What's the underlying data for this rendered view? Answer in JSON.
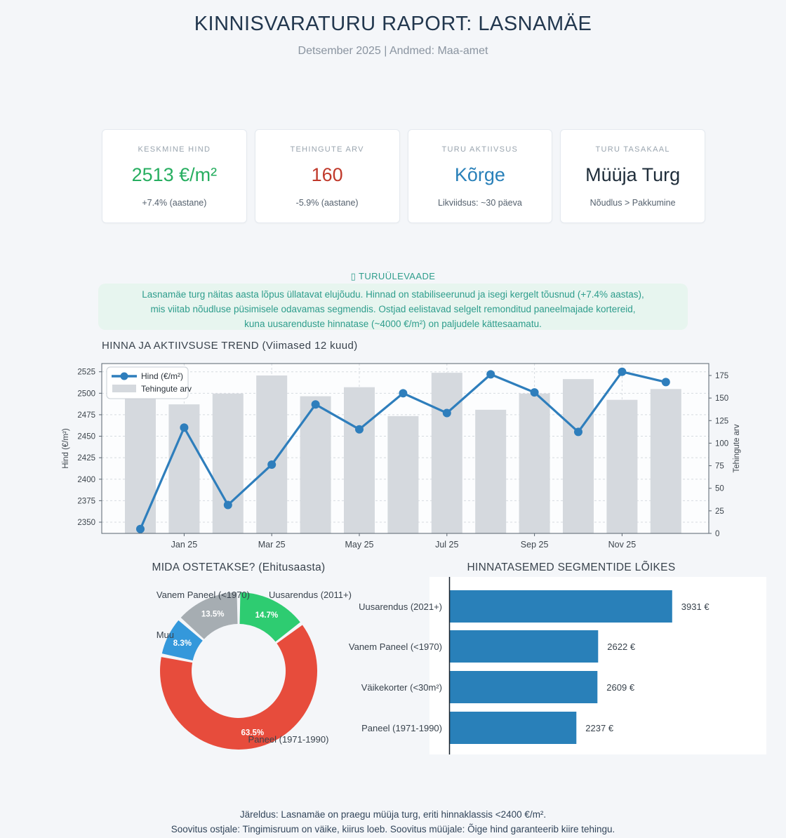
{
  "header": {
    "title": "KINNISVARATURU RAPORT: LASNAMÄE",
    "subtitle": "Detsember 2025 | Andmed: Maa-amet"
  },
  "cards": [
    {
      "label": "KESKMINE HIND",
      "value": "2513 €/m²",
      "sub": "+7.4% (aastane)",
      "color": "#27ae60"
    },
    {
      "label": "TEHINGUTE ARV",
      "value": "160",
      "sub": "-5.9% (aastane)",
      "color": "#c0392b"
    },
    {
      "label": "TURU AKTIIVSUS",
      "value": "Kõrge",
      "sub": "Likviidsus: ~30 päeva",
      "color": "#2980b9"
    },
    {
      "label": "TURU TASAKAAL",
      "value": "Müüja Turg",
      "sub": "Nõudlus > Pakkumine",
      "color": "#1f2d3a"
    }
  ],
  "overview": {
    "heading": "▯ TURUÜLEVAADE",
    "lines": [
      "Lasnamäe turg näitas aasta lõpus üllatavat elujõudu. Hinnad on stabiliseerunud ja isegi kergelt tõusnud (+7.4% aastas),",
      "mis viitab nõudluse püsimisele odavamas segmendis. Ostjad eelistavad selgelt remonditud paneelmajade kortereid,",
      "kuna uusarenduste hinnatase (~4000 €/m²) on paljudele kättesaamatu."
    ]
  },
  "chart_data": [
    {
      "type": "line+bar",
      "title": "HINNA JA AKTIIVSUSE TREND (Viimased 12 kuud)",
      "x_count": 13,
      "x_ticks": [
        {
          "i": 1,
          "label": "Jan 25"
        },
        {
          "i": 3,
          "label": "Mar 25"
        },
        {
          "i": 5,
          "label": "May 25"
        },
        {
          "i": 7,
          "label": "Jul 25"
        },
        {
          "i": 9,
          "label": "Sep 25"
        },
        {
          "i": 11,
          "label": "Nov 25"
        }
      ],
      "line": {
        "name": "Hind (€/m²)",
        "color": "#2e7ebc",
        "values": [
          2342,
          2460,
          2370,
          2417,
          2487,
          2458,
          2500,
          2477,
          2522,
          2501,
          2455,
          2525,
          2513
        ]
      },
      "bars": {
        "name": "Tehingute arv",
        "color": "#d5d9de",
        "values": [
          170,
          143,
          155,
          175,
          152,
          162,
          130,
          178,
          137,
          155,
          171,
          148,
          160
        ]
      },
      "left_axis": {
        "label": "Hind (€/m²)",
        "ticks": [
          2350,
          2375,
          2400,
          2425,
          2450,
          2475,
          2500,
          2525
        ],
        "range": [
          2337,
          2535
        ]
      },
      "right_axis": {
        "label": "Tehingute arv",
        "ticks": [
          0,
          25,
          50,
          75,
          100,
          125,
          150,
          175
        ],
        "range": [
          0,
          188
        ]
      },
      "grid": "dashed",
      "legend_position": "top-left"
    },
    {
      "type": "pie",
      "donut": true,
      "title": "MIDA OSTETAKSE? (Ehitusaasta)",
      "start_angle_deg": 90,
      "direction": "clockwise",
      "slices": [
        {
          "label": "Uusarendus (2011+)",
          "value": 14.7,
          "color": "#2ecc71"
        },
        {
          "label": "Paneel (1971-1990)",
          "value": 63.5,
          "color": "#e74c3c"
        },
        {
          "label": "Muu",
          "value": 8.3,
          "color": "#3498db"
        },
        {
          "label": "Vanem Paneel (<1970)",
          "value": 13.5,
          "color": "#a6adb2"
        }
      ]
    },
    {
      "type": "bar",
      "orientation": "horizontal",
      "title": "HINNATASEMED SEGMENTIDE LÕIKES",
      "categories": [
        "Uusarendus (2021+)",
        "Vanem Paneel (<1970)",
        "Väikekorter (<30m²)",
        "Paneel (1971-1990)"
      ],
      "values": [
        3931,
        2622,
        2609,
        2237
      ],
      "value_labels": [
        "3931 €",
        "2622 €",
        "2609 €",
        "2237 €"
      ],
      "bar_color": "#2980b9",
      "xlim": [
        0,
        4700
      ]
    }
  ],
  "footer": {
    "line1": "Järeldus: Lasnamäe on praegu müüja turg, eriti hinnaklassis <2400 €/m².",
    "line2": "Soovitus ostjale: Tingimisruum on väike, kiirus loeb. Soovitus müüjale: Õige hind garanteerib kiire tehingu."
  }
}
